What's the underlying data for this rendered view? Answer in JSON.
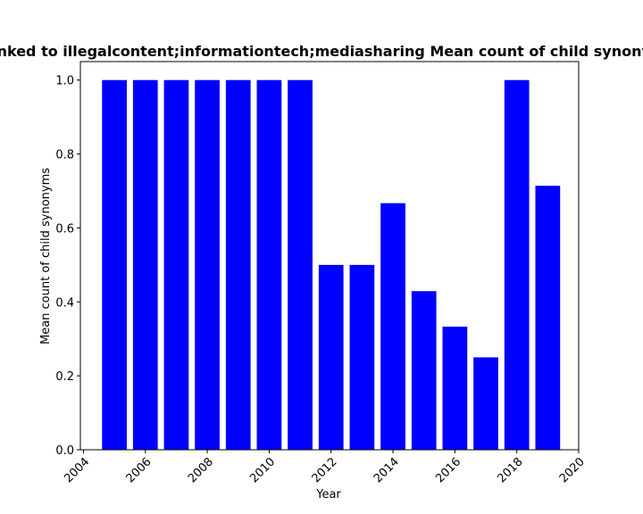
{
  "chart_data": {
    "type": "bar",
    "title": "Linked to illegalcontent;informationtech;mediasharing Mean count of child synonyms",
    "xlabel": "Year",
    "ylabel": "Mean count of child synonyms",
    "x": [
      2005,
      2006,
      2007,
      2008,
      2009,
      2010,
      2011,
      2012,
      2013,
      2014,
      2015,
      2016,
      2017,
      2018,
      2019
    ],
    "values": [
      1.0,
      1.0,
      1.0,
      1.0,
      1.0,
      1.0,
      1.0,
      0.5,
      0.5,
      0.667,
      0.429,
      0.333,
      0.25,
      1.0,
      0.714
    ],
    "xlim": [
      2003.9,
      2020.0
    ],
    "ylim": [
      0.0,
      1.05
    ],
    "xticks": [
      "2004",
      "2006",
      "2008",
      "2010",
      "2012",
      "2014",
      "2016",
      "2018",
      "2020"
    ],
    "yticks": [
      "0.0",
      "0.2",
      "0.4",
      "0.6",
      "0.8",
      "1.0"
    ],
    "bar_color": "#0000ff",
    "grid": false,
    "legend": "none"
  }
}
